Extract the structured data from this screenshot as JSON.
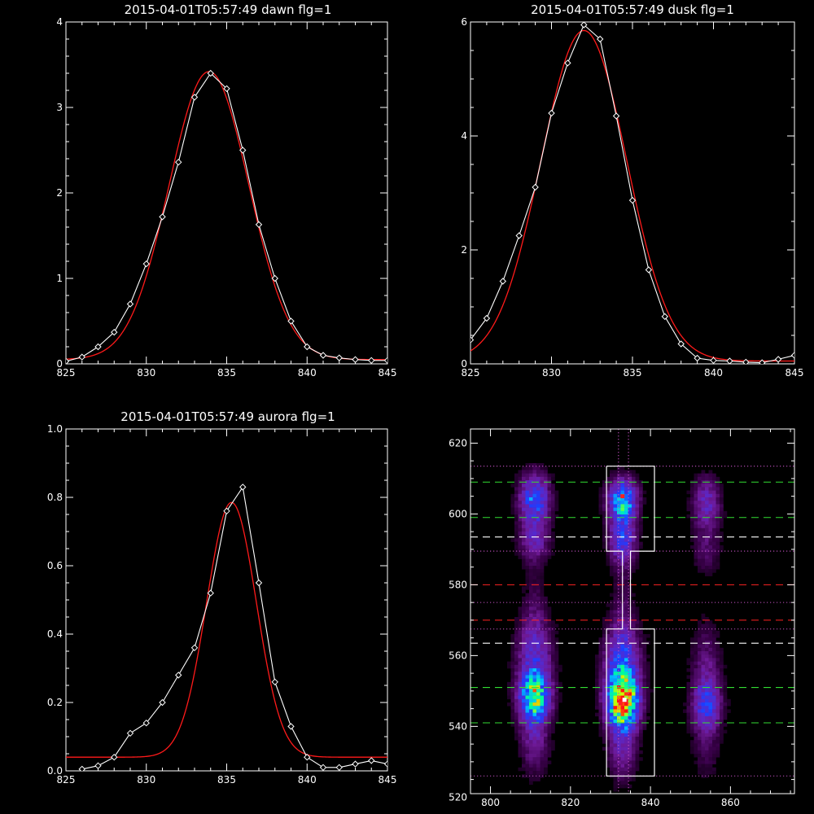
{
  "chart_data": [
    {
      "id": "dawn",
      "type": "line",
      "title": "2015-04-01T05:57:49 dawn flg=1",
      "xlim": [
        825,
        845
      ],
      "ylim": [
        0,
        4
      ],
      "xticks": [
        825,
        830,
        835,
        840,
        845
      ],
      "yticks": [
        0,
        1,
        2,
        3,
        4
      ],
      "series": [
        {
          "style": "white-line-diamonds",
          "color": "#ffffff",
          "x": [
            825,
            826,
            827,
            828,
            829,
            830,
            831,
            832,
            833,
            834,
            835,
            836,
            837,
            838,
            839,
            840,
            841,
            842,
            843,
            844,
            845
          ],
          "y": [
            0.03,
            0.08,
            0.2,
            0.37,
            0.7,
            1.17,
            1.72,
            2.36,
            3.12,
            3.4,
            3.22,
            2.5,
            1.63,
            1.0,
            0.5,
            0.2,
            0.1,
            0.07,
            0.05,
            0.04,
            0.04
          ]
        },
        {
          "style": "red-fit",
          "color": "#ff1a1a",
          "fit": {
            "type": "gaussian",
            "amp": 3.37,
            "center": 833.9,
            "sigma": 2.48,
            "offset": 0.05
          }
        }
      ]
    },
    {
      "id": "dusk",
      "type": "line",
      "title": "2015-04-01T05:57:49 dusk flg=1",
      "xlim": [
        825,
        845
      ],
      "ylim": [
        0,
        6
      ],
      "xticks": [
        825,
        830,
        835,
        840,
        845
      ],
      "yticks": [
        0,
        2,
        4,
        6
      ],
      "series": [
        {
          "style": "white-line-diamonds",
          "color": "#ffffff",
          "x": [
            825,
            826,
            827,
            828,
            829,
            830,
            831,
            832,
            833,
            834,
            835,
            836,
            837,
            838,
            839,
            840,
            841,
            842,
            843,
            844,
            845
          ],
          "y": [
            0.42,
            0.8,
            1.45,
            2.25,
            3.1,
            4.4,
            5.28,
            5.95,
            5.7,
            4.35,
            2.87,
            1.65,
            0.83,
            0.35,
            0.1,
            0.06,
            0.05,
            0.03,
            0.02,
            0.08,
            0.15
          ]
        },
        {
          "style": "red-fit",
          "color": "#ff1a1a",
          "fit": {
            "type": "gaussian",
            "amp": 5.8,
            "center": 832.0,
            "sigma": 2.65,
            "offset": 0.05
          }
        }
      ]
    },
    {
      "id": "aurora",
      "type": "line",
      "title": "2015-04-01T05:57:49 aurora flg=1",
      "xlim": [
        825,
        845
      ],
      "ylim": [
        0,
        1.0
      ],
      "xticks": [
        825,
        830,
        835,
        840,
        845
      ],
      "yticks": [
        0.0,
        0.2,
        0.4,
        0.6,
        0.8,
        1.0
      ],
      "ytick_labels": [
        "0.0",
        "0.2",
        "0.4",
        "0.6",
        "0.8",
        "1.0"
      ],
      "series": [
        {
          "style": "white-line-diamonds",
          "color": "#ffffff",
          "x": [
            826,
            827,
            828,
            829,
            830,
            831,
            832,
            833,
            834,
            835,
            836,
            837,
            838,
            839,
            840,
            841,
            842,
            843,
            844,
            845
          ],
          "y": [
            0.005,
            0.015,
            0.04,
            0.11,
            0.14,
            0.2,
            0.28,
            0.36,
            0.52,
            0.76,
            0.83,
            0.55,
            0.26,
            0.13,
            0.04,
            0.01,
            0.01,
            0.02,
            0.03,
            0.02
          ]
        },
        {
          "style": "red-fit",
          "color": "#ff1a1a",
          "fit": {
            "type": "gaussian",
            "amp": 0.745,
            "center": 835.3,
            "sigma": 1.55,
            "offset": 0.04
          }
        }
      ]
    },
    {
      "id": "spectrogram",
      "type": "heatmap",
      "title": "",
      "xlim": [
        795,
        876
      ],
      "ylim": [
        521,
        624
      ],
      "xticks": [
        800,
        820,
        840,
        860
      ],
      "yticks": [
        520,
        540,
        560,
        580,
        600,
        620
      ],
      "blobs": [
        {
          "x": 811,
          "y": 604,
          "sx": 2.6,
          "sy": 5,
          "amp": 0.55
        },
        {
          "x": 811,
          "y": 592,
          "sx": 2.6,
          "sy": 4,
          "amp": 0.28
        },
        {
          "x": 811,
          "y": 548,
          "sx": 2.7,
          "sy": 5,
          "amp": 0.75
        },
        {
          "x": 811,
          "y": 560,
          "sx": 3,
          "sy": 8,
          "amp": 0.35
        },
        {
          "x": 811,
          "y": 535,
          "sx": 2.5,
          "sy": 6,
          "amp": 0.22
        },
        {
          "x": 811,
          "y": 575,
          "sx": 2,
          "sy": 8,
          "amp": 0.08
        },
        {
          "x": 833,
          "y": 604,
          "sx": 2.5,
          "sy": 4,
          "amp": 0.7
        },
        {
          "x": 833,
          "y": 593,
          "sx": 2.3,
          "sy": 5,
          "amp": 0.45
        },
        {
          "x": 833,
          "y": 547,
          "sx": 2.7,
          "sy": 5,
          "amp": 1.0
        },
        {
          "x": 833,
          "y": 558,
          "sx": 3,
          "sy": 8,
          "amp": 0.5
        },
        {
          "x": 833,
          "y": 535,
          "sx": 2.5,
          "sy": 7,
          "amp": 0.28
        },
        {
          "x": 833,
          "y": 577,
          "sx": 1.8,
          "sy": 9,
          "amp": 0.08
        },
        {
          "x": 854,
          "y": 603,
          "sx": 2.4,
          "sy": 5,
          "amp": 0.33
        },
        {
          "x": 854,
          "y": 590,
          "sx": 2.4,
          "sy": 5,
          "amp": 0.15
        },
        {
          "x": 854,
          "y": 546,
          "sx": 2.5,
          "sy": 5,
          "amp": 0.42
        },
        {
          "x": 854,
          "y": 558,
          "sx": 2.5,
          "sy": 8,
          "amp": 0.18
        },
        {
          "x": 854,
          "y": 534,
          "sx": 2.5,
          "sy": 6,
          "amp": 0.12
        }
      ],
      "hlines": [
        {
          "y": 613.5,
          "color": "#c050c0",
          "dash": "dotted"
        },
        {
          "y": 609,
          "color": "#33dd33",
          "dash": "dashed"
        },
        {
          "y": 599,
          "color": "#33dd33",
          "dash": "dashed"
        },
        {
          "y": 593.5,
          "color": "#ffffff",
          "dash": "dashed"
        },
        {
          "y": 589.5,
          "color": "#c050c0",
          "dash": "dotted"
        },
        {
          "y": 580,
          "color": "#ff2222",
          "dash": "dashed"
        },
        {
          "y": 575,
          "color": "#c050c0",
          "dash": "dotted"
        },
        {
          "y": 570,
          "color": "#ff2222",
          "dash": "dashed"
        },
        {
          "y": 567.5,
          "color": "#c050c0",
          "dash": "dotted"
        },
        {
          "y": 563.5,
          "color": "#ffffff",
          "dash": "dashed"
        },
        {
          "y": 551,
          "color": "#33dd33",
          "dash": "dashed"
        },
        {
          "y": 541,
          "color": "#33dd33",
          "dash": "dashed"
        },
        {
          "y": 526,
          "color": "#c050c0",
          "dash": "dotted"
        }
      ],
      "vlines": [
        {
          "x": 832,
          "color": "#c050c0",
          "dash": "dotted"
        },
        {
          "x": 834.5,
          "color": "#c050c0",
          "dash": "dotted"
        }
      ],
      "box_outline": [
        [
          829,
          613.5
        ],
        [
          841,
          613.5
        ],
        [
          841,
          589.5
        ],
        [
          835,
          589.5
        ],
        [
          835,
          567.5
        ],
        [
          841,
          567.5
        ],
        [
          841,
          526
        ],
        [
          829,
          526
        ],
        [
          829,
          567.5
        ],
        [
          833,
          567.5
        ],
        [
          833,
          589.5
        ],
        [
          829,
          589.5
        ],
        [
          829,
          613.5
        ]
      ],
      "hot_pixels": [
        {
          "x": 833,
          "y": 605,
          "color": "#ff2020"
        },
        {
          "x": 832.5,
          "y": 546.5,
          "color": "#ff2020"
        },
        {
          "x": 833.5,
          "y": 547.5,
          "color": "#ffffff"
        }
      ]
    }
  ]
}
